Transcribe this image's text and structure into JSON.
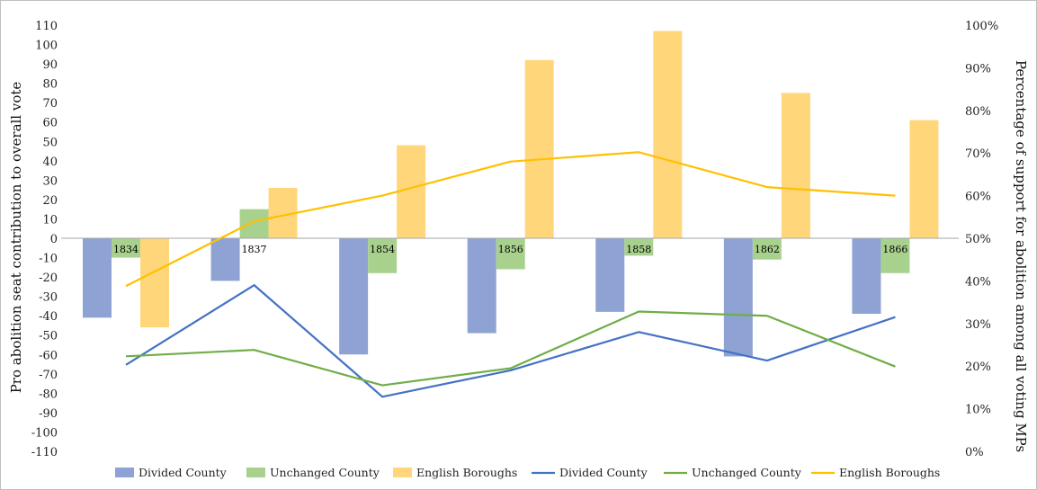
{
  "chart_data": {
    "type": "bar",
    "categories": [
      "1834",
      "1837",
      "1854",
      "1856",
      "1858",
      "1862",
      "1866"
    ],
    "ylabel": "Pro abolition seat contribution to overall vote",
    "y2label": "Percentage of support for abolition among all voting MPs",
    "ylim": [
      -110,
      110
    ],
    "yticks": [
      "110",
      "100",
      "90",
      "80",
      "70",
      "60",
      "50",
      "40",
      "30",
      "20",
      "10",
      "0",
      "-10",
      "-20",
      "-30",
      "-40",
      "-50",
      "-60",
      "-70",
      "-80",
      "-90",
      "-100",
      "-110"
    ],
    "y2lim": [
      0,
      100
    ],
    "y2ticks": [
      "100%",
      "90%",
      "80%",
      "70%",
      "60%",
      "50%",
      "40%",
      "30%",
      "20%",
      "10%",
      "0%"
    ],
    "grid": false,
    "legend_position": "bottom",
    "bar_series": [
      {
        "name": "Divided County",
        "color": "#8fa2d4",
        "values": [
          -41,
          -22,
          -60,
          -49,
          -38,
          -61,
          -39
        ]
      },
      {
        "name": "Unchanged County",
        "color": "#a9d18e",
        "values": [
          -10,
          15,
          -18,
          -16,
          -9,
          -11,
          -18
        ]
      },
      {
        "name": "English Boroughs",
        "color": "#ffd77a",
        "values": [
          -46,
          26,
          48,
          92,
          107,
          75,
          61
        ]
      }
    ],
    "line_series": [
      {
        "name": "Divided County",
        "color": "#4472c4",
        "values": [
          20.3,
          39,
          12.8,
          19,
          28,
          21.3,
          31.5
        ]
      },
      {
        "name": "Unchanged County",
        "color": "#70ad47",
        "values": [
          22.3,
          23.8,
          15.5,
          19.5,
          32.8,
          31.8,
          19.9
        ]
      },
      {
        "name": "English Boroughs",
        "color": "#ffc000",
        "values": [
          38.8,
          54,
          60,
          68,
          70.2,
          62,
          60
        ]
      }
    ]
  }
}
